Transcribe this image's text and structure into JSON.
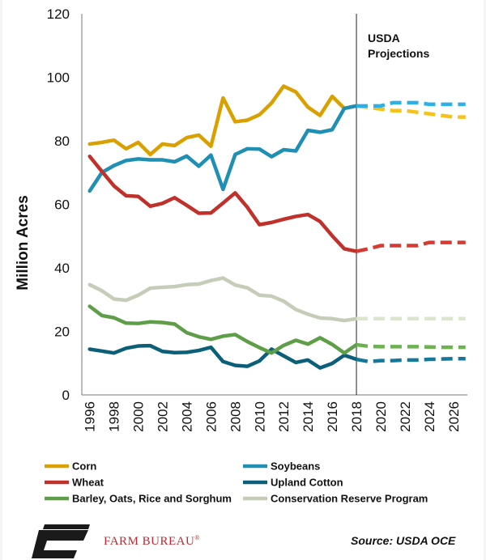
{
  "chart_data": {
    "type": "line",
    "ylabel": "Million Acres",
    "ylim": [
      0,
      120
    ],
    "yticks": [
      "0",
      "20",
      "40",
      "60",
      "80",
      "100",
      "120"
    ],
    "xlim": [
      1996,
      2027
    ],
    "xticks": [
      "1996",
      "1998",
      "2000",
      "2002",
      "2004",
      "2006",
      "2008",
      "2010",
      "2012",
      "2014",
      "2016",
      "2018",
      "2020",
      "2022",
      "2024",
      "2026"
    ],
    "projection_start": 2018,
    "annotation": "USDA\nProjections",
    "grid": false,
    "legend_position": "bottom",
    "series": [
      {
        "name": "Corn",
        "color": "#d9a000",
        "proj_color": "#f5c21a",
        "x": [
          1996,
          1997,
          1998,
          1999,
          2000,
          2001,
          2002,
          2003,
          2004,
          2005,
          2006,
          2007,
          2008,
          2009,
          2010,
          2011,
          2012,
          2013,
          2014,
          2015,
          2016,
          2017,
          2018,
          2019,
          2020,
          2021,
          2022,
          2023,
          2024,
          2025,
          2026,
          2027
        ],
        "values": [
          79,
          79.5,
          80.2,
          77.5,
          79.5,
          75.7,
          79,
          78.5,
          81,
          81.8,
          78.3,
          93.5,
          86,
          86.5,
          88.2,
          91.9,
          97.2,
          95.4,
          90.6,
          88,
          94,
          90.2,
          91,
          90.5,
          90,
          89.5,
          89.5,
          89,
          88.5,
          88,
          87.5,
          87.5
        ]
      },
      {
        "name": "Soybeans",
        "color": "#1f8fb3",
        "proj_color": "#2db0e8",
        "x": [
          1996,
          1997,
          1998,
          1999,
          2000,
          2001,
          2002,
          2003,
          2004,
          2005,
          2006,
          2007,
          2008,
          2009,
          2010,
          2011,
          2012,
          2013,
          2014,
          2015,
          2016,
          2017,
          2018,
          2019,
          2020,
          2021,
          2022,
          2023,
          2024,
          2025,
          2026,
          2027
        ],
        "values": [
          64.2,
          70,
          72.2,
          73.8,
          74.3,
          74,
          74,
          73.4,
          75.2,
          72,
          75.5,
          64.7,
          75.7,
          77.5,
          77.4,
          75,
          77.2,
          76.8,
          83.3,
          82.7,
          83.5,
          90.2,
          91,
          91,
          91,
          92,
          92,
          92,
          91.5,
          91.5,
          91.5,
          91.5
        ]
      },
      {
        "name": "Wheat",
        "color": "#c0312b",
        "proj_color": "#d63a32",
        "x": [
          1996,
          1997,
          1998,
          1999,
          2000,
          2001,
          2002,
          2003,
          2004,
          2005,
          2006,
          2007,
          2008,
          2009,
          2010,
          2011,
          2012,
          2013,
          2014,
          2015,
          2016,
          2017,
          2018,
          2019,
          2020,
          2021,
          2022,
          2023,
          2024,
          2025,
          2026,
          2027
        ],
        "values": [
          75.1,
          70.4,
          65.8,
          62.7,
          62.5,
          59.4,
          60.3,
          62.1,
          59.7,
          57.2,
          57.3,
          60.4,
          63.6,
          59.1,
          53.6,
          54.3,
          55.3,
          56.2,
          56.8,
          54.6,
          50.1,
          46,
          45.2,
          46,
          47,
          47,
          47,
          47,
          48,
          48,
          48,
          48
        ]
      },
      {
        "name": "Upland Cotton",
        "color": "#0b5f78",
        "proj_color": "#137899",
        "x": [
          1996,
          1997,
          1998,
          1999,
          2000,
          2001,
          2002,
          2003,
          2004,
          2005,
          2006,
          2007,
          2008,
          2009,
          2010,
          2011,
          2012,
          2013,
          2014,
          2015,
          2016,
          2017,
          2018,
          2019,
          2020,
          2021,
          2022,
          2023,
          2024,
          2025,
          2026,
          2027
        ],
        "values": [
          14.4,
          13.8,
          13.2,
          14.7,
          15.4,
          15.5,
          13.7,
          13.3,
          13.4,
          14,
          15,
          10.5,
          9.3,
          9,
          10.7,
          14.4,
          12.3,
          10.2,
          11,
          8.5,
          9.9,
          12.5,
          11.2,
          10.5,
          10.8,
          10.8,
          11,
          11,
          11.2,
          11.3,
          11.4,
          11.4
        ]
      },
      {
        "name": "Barley, Oats, Rice and Sorghum",
        "color": "#5f9e48",
        "proj_color": "#6cb251",
        "x": [
          1996,
          1997,
          1998,
          1999,
          2000,
          2001,
          2002,
          2003,
          2004,
          2005,
          2006,
          2007,
          2008,
          2009,
          2010,
          2011,
          2012,
          2013,
          2014,
          2015,
          2016,
          2017,
          2018,
          2019,
          2020,
          2021,
          2022,
          2023,
          2024,
          2025,
          2026,
          2027
        ],
        "values": [
          27.9,
          25,
          24.3,
          22.6,
          22.5,
          23,
          22.8,
          22.3,
          19.6,
          18.3,
          17.5,
          18.5,
          19,
          16.8,
          14.9,
          13.2,
          15.6,
          17.2,
          16,
          18,
          15.9,
          13.2,
          15.8,
          15.3,
          15.2,
          15.2,
          15.2,
          15.2,
          15.1,
          15,
          15,
          15
        ]
      },
      {
        "name": "Conservation Reserve Program",
        "color": "#c5cdb8",
        "proj_color": "#dce6cc",
        "x": [
          1996,
          1997,
          1998,
          1999,
          2000,
          2001,
          2002,
          2003,
          2004,
          2005,
          2006,
          2007,
          2008,
          2009,
          2010,
          2011,
          2012,
          2013,
          2014,
          2015,
          2016,
          2017,
          2018,
          2019,
          2020,
          2021,
          2022,
          2023,
          2024,
          2025,
          2026,
          2027
        ],
        "values": [
          34.7,
          32.8,
          30.2,
          29.8,
          31.4,
          33.6,
          33.9,
          34.1,
          34.7,
          34.9,
          36,
          36.8,
          34.6,
          33.7,
          31.4,
          31.1,
          29.5,
          26.9,
          25.4,
          24.2,
          24,
          23.4,
          24,
          24,
          24,
          24,
          24,
          24,
          24,
          24,
          24,
          24
        ]
      }
    ]
  },
  "footer": {
    "brand": "FARM BUREAU",
    "brand_mark": "®",
    "source": "Source: USDA OCE"
  }
}
